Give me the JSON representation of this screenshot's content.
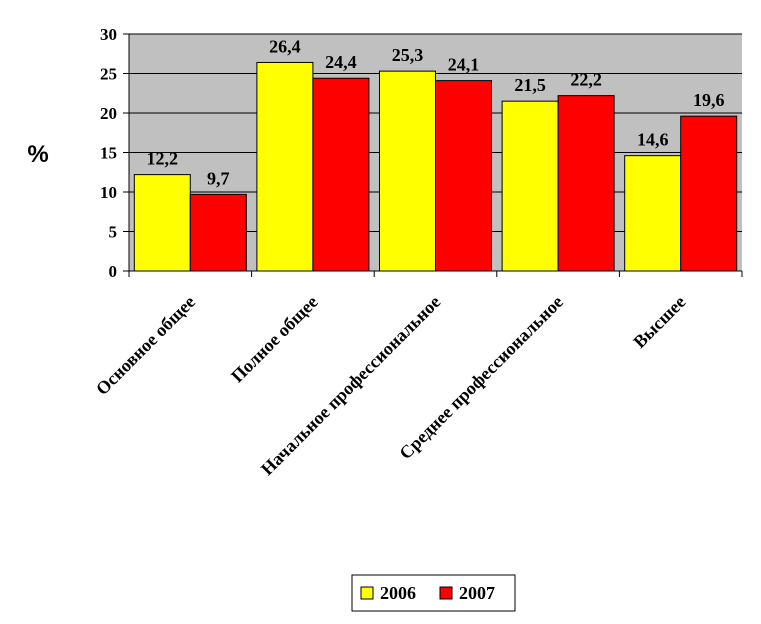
{
  "chart_data": {
    "type": "bar",
    "ylabel": "%",
    "ylim": [
      0,
      30
    ],
    "yticks": [
      "0",
      "5",
      "10",
      "15",
      "20",
      "25",
      "30"
    ],
    "categories": [
      "Основное общее",
      "Полное общее",
      "Начальное профессиональное",
      "Среднее профессиональное",
      "Высшее"
    ],
    "series": [
      {
        "name": "2006",
        "color": "#ffff00",
        "values": [
          12.2,
          26.4,
          25.3,
          21.5,
          14.6
        ],
        "labels": [
          "12,2",
          "26,4",
          "25,3",
          "21,5",
          "14,6"
        ]
      },
      {
        "name": "2007",
        "color": "#ff0000",
        "values": [
          9.7,
          24.4,
          24.1,
          22.2,
          19.6
        ],
        "labels": [
          "9,7",
          "24,4",
          "24,1",
          "22,2",
          "19,6"
        ]
      }
    ],
    "grid": true,
    "plot_background": "#c0c0c0",
    "legend": "bottom"
  }
}
